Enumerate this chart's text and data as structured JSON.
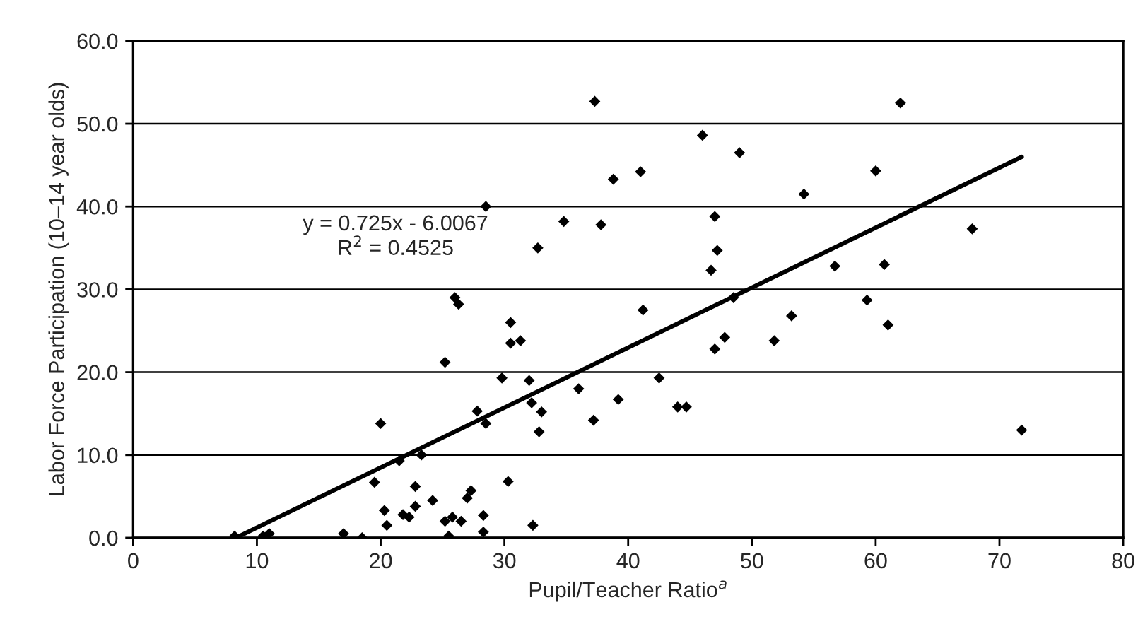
{
  "chart_data": {
    "type": "scatter",
    "xlabel": "Pupil/Teacher Ratio$^{a}$",
    "ylabel": "Labor Force Participation (10–14 year olds)",
    "xlim": [
      0,
      80
    ],
    "xticks": [
      0,
      10,
      20,
      30,
      40,
      50,
      60,
      70,
      80
    ],
    "ylim": [
      0,
      60
    ],
    "yticks": [
      {
        "value": 0,
        "label": "0.0"
      },
      {
        "value": 10,
        "label": "10.0"
      },
      {
        "value": 20,
        "label": "20.0"
      },
      {
        "value": 30,
        "label": "30.0"
      },
      {
        "value": 40,
        "label": "40.0"
      },
      {
        "value": 50,
        "label": "50.0"
      },
      {
        "value": 60,
        "label": "60.0"
      }
    ],
    "grid": "y",
    "legend": false,
    "annotations": [
      "y = 0.725x - 6.0067\nR$^{2}$ = 0.4525"
    ],
    "series": [
      {
        "marker": "diamond",
        "color": "#000000",
        "x": [
          8.2,
          10.5,
          11,
          17,
          18.5,
          20,
          19.5,
          20.3,
          20.5,
          21.5,
          21.8,
          22.3,
          22.8,
          22.8,
          23.3,
          24.2,
          25.2,
          25.2,
          25.5,
          25.8,
          26,
          26.3,
          26.5,
          27,
          27.3,
          27.8,
          28.3,
          28.3,
          28.5,
          28.5,
          29.8,
          30.3,
          30.5,
          30.5,
          31.3,
          32,
          32.2,
          32.3,
          32.7,
          32.8,
          33,
          34.8,
          36,
          37.3,
          37.2,
          37.8,
          38.8,
          39.2,
          41,
          41.2,
          42.5,
          44,
          44.7,
          46,
          46.7,
          47,
          47.2,
          47,
          47.8,
          48.5,
          49,
          51.8,
          53.2,
          54.2,
          56.7,
          59.3,
          60,
          60.7,
          61,
          62,
          67.8,
          71.8
        ],
        "values": [
          0.2,
          0.2,
          0.5,
          0.5,
          0,
          13.8,
          6.7,
          3.3,
          1.5,
          9.3,
          2.8,
          2.5,
          6.2,
          3.8,
          10,
          4.5,
          21.2,
          2,
          0.2,
          2.5,
          29,
          28.2,
          2,
          4.8,
          5.7,
          15.3,
          2.7,
          0.7,
          13.8,
          40,
          19.3,
          6.8,
          26,
          23.5,
          23.8,
          19,
          16.3,
          1.5,
          35,
          12.8,
          15.2,
          38.2,
          18,
          52.7,
          14.2,
          37.8,
          43.3,
          16.7,
          44.2,
          27.5,
          19.3,
          15.8,
          15.8,
          48.6,
          32.3,
          38.8,
          34.7,
          22.8,
          24.2,
          29,
          46.5,
          23.8,
          26.8,
          41.5,
          32.8,
          28.7,
          44.3,
          33,
          25.7,
          52.5,
          37.3,
          13
        ]
      },
      {
        "type": "line",
        "color": "#000000",
        "line_style": "solid",
        "x": [
          8.3,
          71.8
        ],
        "values": [
          0.0,
          46.0
        ]
      }
    ]
  }
}
